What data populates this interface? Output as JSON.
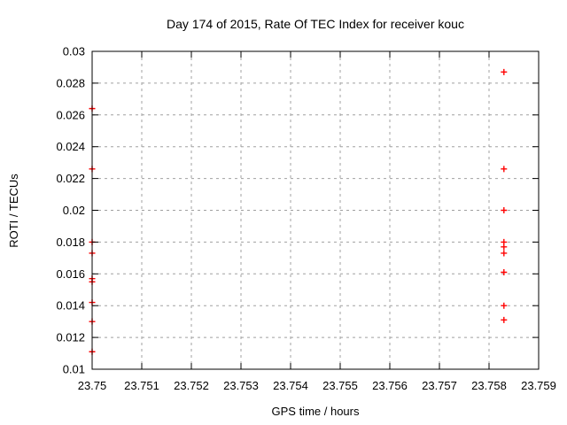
{
  "chart_data": {
    "type": "scatter",
    "title": "Day 174 of 2015, Rate Of TEC Index for receiver kouc",
    "xlabel": "GPS time / hours",
    "ylabel": "ROTI / TECUs",
    "xlim": [
      23.75,
      23.759
    ],
    "ylim": [
      0.01,
      0.03
    ],
    "x_ticks": [
      23.75,
      23.751,
      23.752,
      23.753,
      23.754,
      23.755,
      23.756,
      23.757,
      23.758,
      23.759
    ],
    "x_tick_labels": [
      "23.75",
      "23.751",
      "23.752",
      "23.753",
      "23.754",
      "23.755",
      "23.756",
      "23.757",
      "23.758",
      "23.759"
    ],
    "y_ticks": [
      0.01,
      0.012,
      0.014,
      0.016,
      0.018,
      0.02,
      0.022,
      0.024,
      0.026,
      0.028,
      0.03
    ],
    "y_tick_labels": [
      "0.01",
      "0.012",
      "0.014",
      "0.016",
      "0.018",
      "0.02",
      "0.022",
      "0.024",
      "0.026",
      "0.028",
      "0.03"
    ],
    "grid": true,
    "legend": "none",
    "marker": "plus",
    "colors": {
      "marker": "#ff0000",
      "grid": "#a0a0a0",
      "border": "#000000",
      "background": "#ffffff",
      "text": "#000000"
    },
    "series": [
      {
        "name": "ROTI",
        "points": [
          {
            "x": 23.75,
            "y": 0.0264
          },
          {
            "x": 23.75,
            "y": 0.0226
          },
          {
            "x": 23.75,
            "y": 0.018
          },
          {
            "x": 23.75,
            "y": 0.0173
          },
          {
            "x": 23.75,
            "y": 0.0157
          },
          {
            "x": 23.75,
            "y": 0.0155
          },
          {
            "x": 23.75,
            "y": 0.0142
          },
          {
            "x": 23.75,
            "y": 0.013
          },
          {
            "x": 23.75,
            "y": 0.0111
          },
          {
            "x": 23.7583,
            "y": 0.0287
          },
          {
            "x": 23.7583,
            "y": 0.0226
          },
          {
            "x": 23.7583,
            "y": 0.02
          },
          {
            "x": 23.7583,
            "y": 0.018
          },
          {
            "x": 23.7583,
            "y": 0.0177
          },
          {
            "x": 23.7583,
            "y": 0.0173
          },
          {
            "x": 23.7583,
            "y": 0.0161
          },
          {
            "x": 23.7583,
            "y": 0.014
          },
          {
            "x": 23.7583,
            "y": 0.0131
          }
        ]
      }
    ]
  }
}
